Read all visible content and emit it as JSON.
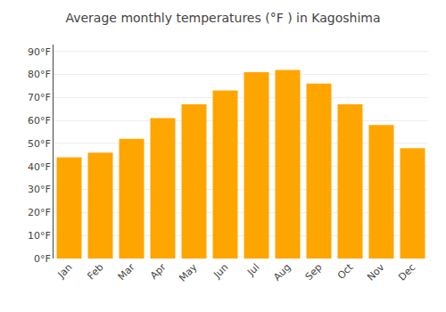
{
  "chart_data": {
    "type": "bar",
    "title": "Average monthly temperatures (°F ) in Kagoshima",
    "categories": [
      "Jan",
      "Feb",
      "Mar",
      "Apr",
      "May",
      "Jun",
      "Jul",
      "Aug",
      "Sep",
      "Oct",
      "Nov",
      "Dec"
    ],
    "values": [
      44,
      46,
      52,
      61,
      67,
      73,
      81,
      82,
      76,
      67,
      58,
      48
    ],
    "color": "#FFA500",
    "ylim": [
      0,
      93
    ],
    "yticks": [
      {
        "value": 0,
        "label": "0°F"
      },
      {
        "value": 10,
        "label": "10°F"
      },
      {
        "value": 20,
        "label": "20°F"
      },
      {
        "value": 30,
        "label": "30°F"
      },
      {
        "value": 40,
        "label": "40°F"
      },
      {
        "value": 50,
        "label": "50°F"
      },
      {
        "value": 60,
        "label": "60°F"
      },
      {
        "value": 70,
        "label": "70°F"
      },
      {
        "value": 80,
        "label": "80°F"
      },
      {
        "value": 90,
        "label": "90°F"
      }
    ],
    "grid": true
  }
}
